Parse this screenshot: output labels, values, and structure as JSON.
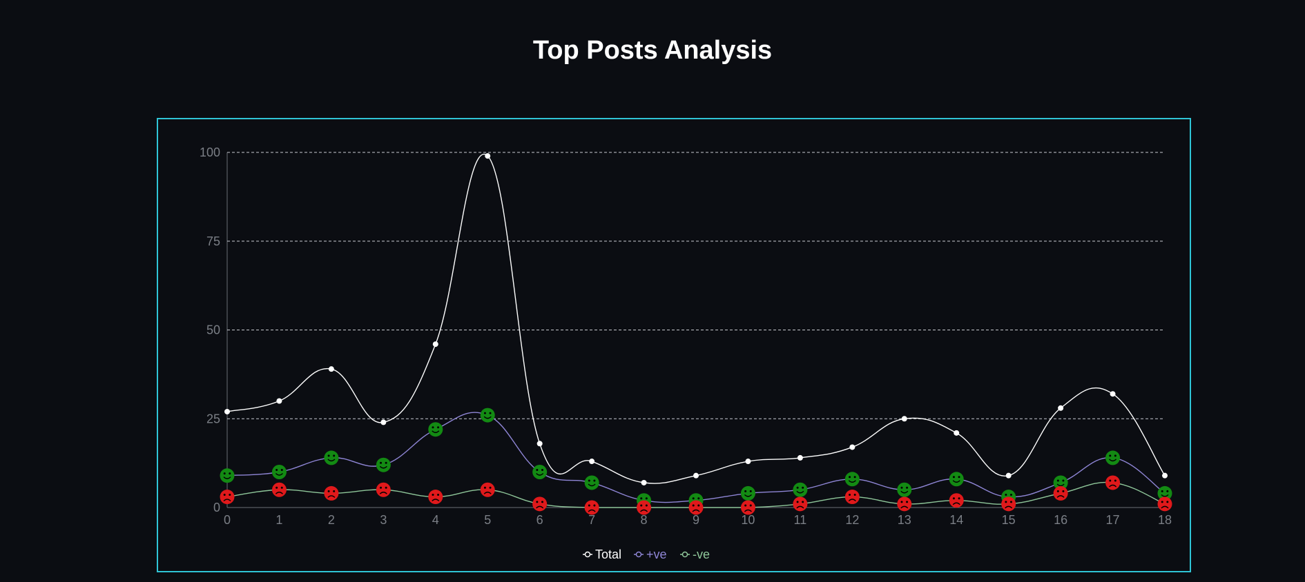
{
  "page": {
    "title": "Top Posts Analysis"
  },
  "chart_data": {
    "type": "line",
    "title": "",
    "xlabel": "",
    "ylabel": "",
    "x": [
      0,
      1,
      2,
      3,
      4,
      5,
      6,
      7,
      8,
      9,
      10,
      11,
      12,
      13,
      14,
      15,
      16,
      17,
      18
    ],
    "ylim": [
      0,
      100
    ],
    "yticks": [
      0,
      25,
      50,
      75,
      100
    ],
    "grid": "horizontal-dashed",
    "legend_position": "bottom",
    "series": [
      {
        "name": "Total",
        "color": "#ffffff",
        "marker": "dot",
        "values": [
          27,
          30,
          39,
          24,
          46,
          99,
          18,
          13,
          7,
          9,
          13,
          14,
          17,
          25,
          21,
          9,
          28,
          32,
          9
        ]
      },
      {
        "name": "+ve",
        "color": "#8f86d6",
        "marker": "happy-face-icon",
        "marker_color": "#138a13",
        "values": [
          9,
          10,
          14,
          12,
          22,
          26,
          10,
          7,
          2,
          2,
          4,
          5,
          8,
          5,
          8,
          3,
          7,
          14,
          4
        ]
      },
      {
        "name": "-ve",
        "color": "#8fc79a",
        "marker": "sad-face-icon",
        "marker_color": "#e0191b",
        "values": [
          3,
          5,
          4,
          5,
          3,
          5,
          1,
          0,
          0,
          0,
          0,
          1,
          3,
          1,
          2,
          1,
          4,
          7,
          1
        ]
      }
    ]
  }
}
